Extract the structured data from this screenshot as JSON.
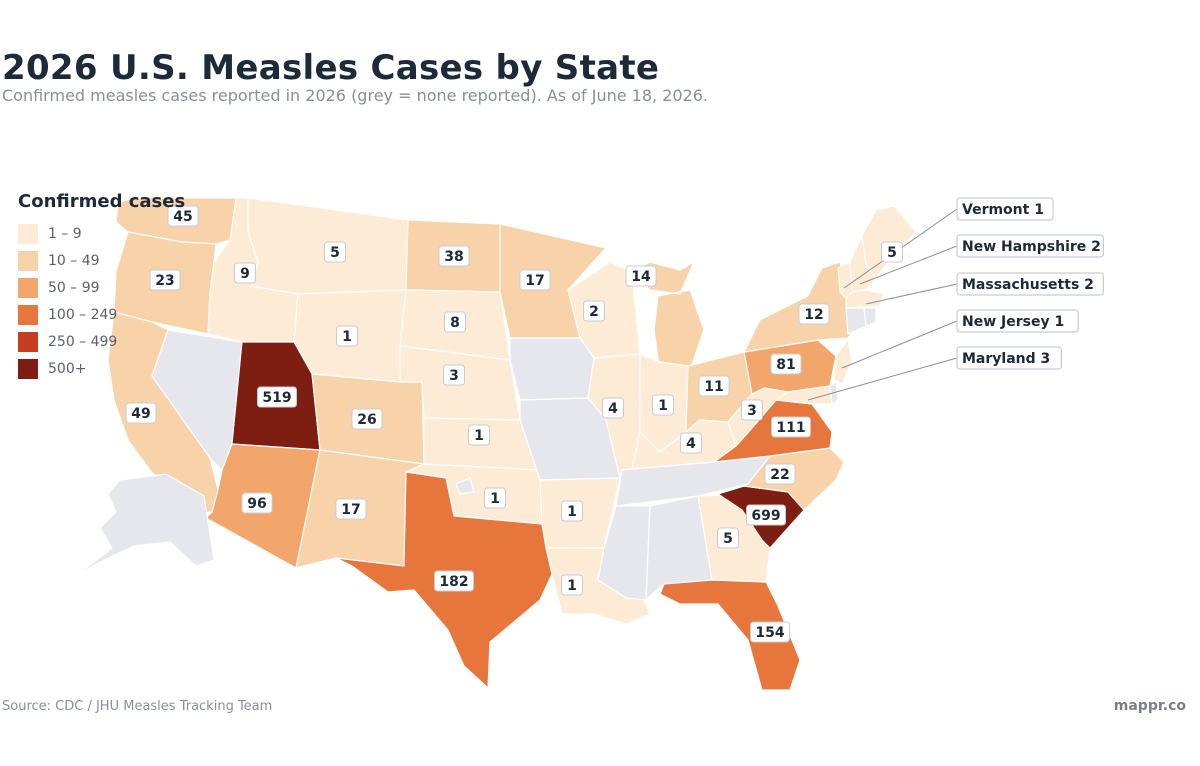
{
  "title": "2026 U.S. Measles Cases by State",
  "subtitle": "Confirmed measles cases reported in 2026 (grey = none reported). As of June 18, 2026.",
  "legend": {
    "title": "Confirmed cases",
    "items": [
      {
        "label": "1 – 9",
        "color": "#fdebd6"
      },
      {
        "label": "10 – 49",
        "color": "#f8d2a9"
      },
      {
        "label": "50 – 99",
        "color": "#f2a66b"
      },
      {
        "label": "100 – 249",
        "color": "#e6763b"
      },
      {
        "label": "250 – 499",
        "color": "#c53e21"
      },
      {
        "label": "500+",
        "color": "#7e1d12"
      }
    ]
  },
  "no_data_color": "#e6e7ec",
  "states": [
    {
      "name": "Washington",
      "cases": 45
    },
    {
      "name": "Oregon",
      "cases": 23
    },
    {
      "name": "California",
      "cases": 49
    },
    {
      "name": "Nevada",
      "cases": null
    },
    {
      "name": "Idaho",
      "cases": 9
    },
    {
      "name": "Montana",
      "cases": 5
    },
    {
      "name": "Wyoming",
      "cases": 1
    },
    {
      "name": "Utah",
      "cases": 519
    },
    {
      "name": "Arizona",
      "cases": 96
    },
    {
      "name": "Colorado",
      "cases": 26
    },
    {
      "name": "New Mexico",
      "cases": 17
    },
    {
      "name": "North Dakota",
      "cases": 38
    },
    {
      "name": "South Dakota",
      "cases": 8
    },
    {
      "name": "Nebraska",
      "cases": 3
    },
    {
      "name": "Kansas",
      "cases": 1
    },
    {
      "name": "Oklahoma",
      "cases": 1
    },
    {
      "name": "Texas",
      "cases": 182
    },
    {
      "name": "Minnesota",
      "cases": 17
    },
    {
      "name": "Iowa",
      "cases": null
    },
    {
      "name": "Missouri",
      "cases": null
    },
    {
      "name": "Arkansas",
      "cases": 1
    },
    {
      "name": "Louisiana",
      "cases": 1
    },
    {
      "name": "Wisconsin",
      "cases": 2
    },
    {
      "name": "Illinois",
      "cases": 4
    },
    {
      "name": "Michigan",
      "cases": 14
    },
    {
      "name": "Indiana",
      "cases": 1
    },
    {
      "name": "Ohio",
      "cases": 11
    },
    {
      "name": "Kentucky",
      "cases": 4
    },
    {
      "name": "Tennessee",
      "cases": null
    },
    {
      "name": "Mississippi",
      "cases": null
    },
    {
      "name": "Alabama",
      "cases": null
    },
    {
      "name": "Georgia",
      "cases": 5
    },
    {
      "name": "Florida",
      "cases": 154
    },
    {
      "name": "South Carolina",
      "cases": 699
    },
    {
      "name": "North Carolina",
      "cases": 22
    },
    {
      "name": "Virginia",
      "cases": 111
    },
    {
      "name": "West Virginia",
      "cases": 3
    },
    {
      "name": "Pennsylvania",
      "cases": 81
    },
    {
      "name": "New York",
      "cases": 12
    },
    {
      "name": "Maine",
      "cases": 5
    },
    {
      "name": "Vermont",
      "cases": 1
    },
    {
      "name": "New Hampshire",
      "cases": 2
    },
    {
      "name": "Massachusetts",
      "cases": 2
    },
    {
      "name": "Connecticut",
      "cases": null
    },
    {
      "name": "Rhode Island",
      "cases": null
    },
    {
      "name": "New Jersey",
      "cases": 1
    },
    {
      "name": "Delaware",
      "cases": null
    },
    {
      "name": "Maryland",
      "cases": 3
    },
    {
      "name": "Alaska",
      "cases": null
    },
    {
      "name": "Hawaii",
      "cases": null
    }
  ],
  "callouts": [
    {
      "state": "Vermont",
      "label": "Vermont",
      "value": "1"
    },
    {
      "state": "New Hampshire",
      "label": "New Hampshire",
      "value": "2"
    },
    {
      "state": "Massachusetts",
      "label": "Massachusetts",
      "value": "2"
    },
    {
      "state": "New Jersey",
      "label": "New Jersey",
      "value": "1"
    },
    {
      "state": "Maryland",
      "label": "Maryland",
      "value": "3"
    }
  ],
  "source": "Source: CDC / JHU Measles Tracking Team",
  "brand": "mappr.co"
}
